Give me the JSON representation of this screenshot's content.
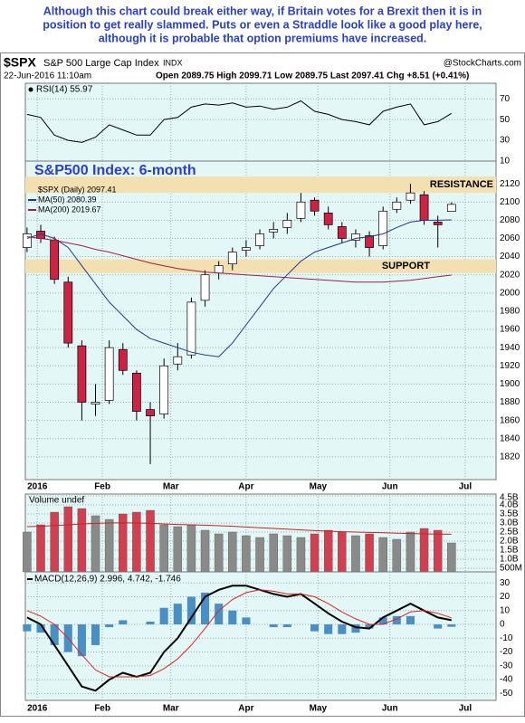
{
  "header": {
    "commentary": [
      "Although this chart could break either way, if Britain votes for a Brexit then it is in",
      "position to get really slammed. Puts or even a Straddle look like a good play here,",
      "although it is probable that option premiums have increased."
    ],
    "symbol": "$SPX",
    "name": "S&P 500 Large Cap Index",
    "exchange": "INDX",
    "date": "22-Jun-2016 11:10am",
    "quote": "Open 2089.75  High 2099.71  Low 2089.75  Last 2097.41  Chg +8.51 (+0.41%)",
    "source": "@StockCharts.com"
  },
  "chart_data": [
    {
      "type": "line",
      "xlim": [
        3.5,
        141
      ],
      "ylim": [
        10,
        85
      ],
      "yticks": [
        70,
        50,
        30,
        10
      ],
      "grid": true,
      "x": [
        4,
        8,
        12,
        16,
        20,
        24,
        28,
        32,
        36,
        40,
        44,
        48,
        52,
        56,
        60,
        64,
        68,
        72,
        76,
        80,
        84,
        88,
        92,
        96,
        100,
        104,
        108,
        112,
        116,
        120,
        124,
        128
      ],
      "series": [
        {
          "name": "RSI(14) 55.97",
          "color": "#000000",
          "values": [
            55,
            52,
            35,
            30,
            28,
            33,
            45,
            40,
            35,
            35,
            50,
            52,
            62,
            65,
            64,
            66,
            62,
            63,
            60,
            62,
            68,
            58,
            55,
            50,
            48,
            45,
            58,
            62,
            65,
            45,
            48,
            55.97
          ]
        }
      ]
    },
    {
      "type": "candlestick",
      "title": "S&P500 Index: 6-month",
      "name": "$SPX (Daily) 2097.41",
      "xlim": [
        3.5,
        141
      ],
      "ylim": [
        1795,
        2145
      ],
      "grid": true,
      "yticks": [
        1820,
        1840,
        1860,
        1880,
        1900,
        1920,
        1940,
        1960,
        1980,
        2000,
        2020,
        2040,
        2060,
        2080,
        2100,
        2120
      ],
      "xticks": [
        {
          "value": 7,
          "label": "2016"
        },
        {
          "value": 26,
          "label": "Feb"
        },
        {
          "value": 46,
          "label": "Mar"
        },
        {
          "value": 68,
          "label": "Apr"
        },
        {
          "value": 89,
          "label": "May"
        },
        {
          "value": 110,
          "label": "Jun"
        },
        {
          "value": 132,
          "label": "Jul"
        }
      ],
      "x": [
        4,
        8,
        12,
        16,
        20,
        24,
        28,
        32,
        36,
        40,
        44,
        48,
        52,
        56,
        60,
        64,
        68,
        72,
        76,
        80,
        84,
        88,
        92,
        96,
        100,
        104,
        108,
        112,
        116,
        120,
        124,
        128
      ],
      "open": [
        2050,
        2068,
        2058,
        2012,
        1942,
        1878,
        1882,
        1938,
        1912,
        1872,
        1867,
        1922,
        1932,
        1992,
        2022,
        2032,
        2047,
        2052,
        2067,
        2072,
        2082,
        2102,
        2088,
        2073,
        2058,
        2063,
        2052,
        2092,
        2102,
        2108,
        2078,
        2089.75
      ],
      "high": [
        2072,
        2075,
        2062,
        2018,
        1948,
        1900,
        1948,
        1945,
        1915,
        1880,
        1928,
        1945,
        1995,
        2025,
        2035,
        2050,
        2058,
        2070,
        2078,
        2088,
        2110,
        2105,
        2095,
        2078,
        2070,
        2068,
        2095,
        2105,
        2120,
        2112,
        2085,
        2099.71
      ],
      "low": [
        2045,
        2055,
        2010,
        1940,
        1860,
        1865,
        1878,
        1910,
        1860,
        1812,
        1862,
        1915,
        1928,
        1985,
        2015,
        2025,
        2040,
        2048,
        2060,
        2065,
        2078,
        2085,
        2070,
        2055,
        2050,
        2040,
        2048,
        2088,
        2098,
        2075,
        2050,
        2089.75
      ],
      "close": [
        2065,
        2060,
        2015,
        1945,
        1880,
        1880,
        1940,
        1915,
        1870,
        1865,
        1920,
        1930,
        1990,
        2020,
        2030,
        2045,
        2050,
        2065,
        2070,
        2080,
        2100,
        2090,
        2075,
        2060,
        2065,
        2050,
        2090,
        2100,
        2110,
        2080,
        2075,
        2097.41
      ],
      "up_color": "#ffffff",
      "down_color": "#cc2244",
      "series": [
        {
          "name": "MA(50) 2080.39",
          "color": "#1a3a8a",
          "values": [
            2060,
            2065,
            2060,
            2050,
            2030,
            2010,
            1990,
            1975,
            1960,
            1950,
            1945,
            1940,
            1935,
            1932,
            1930,
            1945,
            1965,
            1985,
            2005,
            2020,
            2035,
            2045,
            2050,
            2055,
            2060,
            2062,
            2065,
            2072,
            2078,
            2080,
            2080,
            2080.39
          ]
        },
        {
          "name": "MA(200) 2019.67",
          "color": "#a02040",
          "values": [
            2062,
            2060,
            2058,
            2055,
            2052,
            2048,
            2045,
            2041,
            2037,
            2033,
            2030,
            2027,
            2025,
            2023,
            2022,
            2021,
            2020,
            2019,
            2018,
            2017,
            2016,
            2015,
            2014,
            2013,
            2012,
            2012,
            2012,
            2013,
            2014,
            2016,
            2018,
            2019.67
          ]
        }
      ],
      "bands": [
        {
          "label": "RESISTANCE",
          "range": [
            2110,
            2128
          ],
          "color": "#f3dfb0"
        },
        {
          "label": "SUPPORT",
          "range": [
            2022,
            2037
          ],
          "color": "#f3dfb0"
        }
      ]
    },
    {
      "type": "bar",
      "name": "Volume undef",
      "xlim": [
        3.5,
        141
      ],
      "ylim": [
        300000000,
        4600000000
      ],
      "grid": true,
      "yticks": [
        {
          "value": 500000000,
          "label": "500M"
        },
        {
          "value": 1000000000,
          "label": "1.0B"
        },
        {
          "value": 1500000000,
          "label": "1.5B"
        },
        {
          "value": 2000000000,
          "label": "2.0B"
        },
        {
          "value": 2500000000,
          "label": "2.5B"
        },
        {
          "value": 3000000000,
          "label": "3.0B"
        },
        {
          "value": 3500000000,
          "label": "3.5B"
        },
        {
          "value": 4000000000,
          "label": "4.0B"
        },
        {
          "value": 4500000000,
          "label": "4.5B"
        }
      ],
      "x": [
        4,
        8,
        12,
        16,
        20,
        24,
        28,
        32,
        36,
        40,
        44,
        48,
        52,
        56,
        60,
        64,
        68,
        72,
        76,
        80,
        84,
        88,
        92,
        96,
        100,
        104,
        108,
        112,
        116,
        120,
        124,
        128
      ],
      "values": [
        2500000000,
        2900000000,
        3600000000,
        3900000000,
        3800000000,
        3400000000,
        3200000000,
        3500000000,
        3600000000,
        3700000000,
        2900000000,
        2800000000,
        2900000000,
        2600000000,
        2400000000,
        2500000000,
        2300000000,
        2200000000,
        2400000000,
        2300000000,
        2200000000,
        2400000000,
        2600000000,
        2500000000,
        2300000000,
        2400000000,
        2200000000,
        2100000000,
        2500000000,
        2700000000,
        2600000000,
        1900000000
      ],
      "up_color": "#8a8a8a",
      "down_color": "#d04050",
      "average": [
        2800000000,
        2820000000,
        2860000000,
        2900000000,
        2950000000,
        2980000000,
        3000000000,
        3010000000,
        3000000000,
        2980000000,
        2950000000,
        2920000000,
        2900000000,
        2880000000,
        2850000000,
        2820000000,
        2780000000,
        2740000000,
        2700000000,
        2660000000,
        2620000000,
        2580000000,
        2550000000,
        2520000000,
        2500000000,
        2480000000,
        2460000000,
        2440000000,
        2420000000,
        2400000000,
        2390000000,
        2380000000
      ],
      "average_color": "#cc2222"
    },
    {
      "type": "macd",
      "name": "MACD(12,26,9) 2.996, 4.742, -1.746",
      "xlim": [
        3.5,
        141
      ],
      "ylim": [
        -55,
        38
      ],
      "grid": true,
      "yticks": [
        30,
        20,
        10,
        0,
        -10,
        -20,
        -30,
        -40,
        -50
      ],
      "xticks": [
        {
          "value": 7,
          "label": "2016"
        },
        {
          "value": 26,
          "label": "Feb"
        },
        {
          "value": 46,
          "label": "Mar"
        },
        {
          "value": 68,
          "label": "Apr"
        },
        {
          "value": 89,
          "label": "May"
        },
        {
          "value": 110,
          "label": "Jun"
        },
        {
          "value": 132,
          "label": "Jul"
        }
      ],
      "x": [
        4,
        8,
        12,
        16,
        20,
        24,
        28,
        32,
        36,
        40,
        44,
        48,
        52,
        56,
        60,
        64,
        68,
        72,
        76,
        80,
        84,
        88,
        92,
        96,
        100,
        104,
        108,
        112,
        116,
        120,
        124,
        128
      ],
      "series": [
        {
          "color": "#000000",
          "values": [
            5,
            0,
            -15,
            -30,
            -45,
            -48,
            -40,
            -35,
            -38,
            -35,
            -20,
            -10,
            5,
            20,
            25,
            28,
            28,
            25,
            22,
            20,
            22,
            15,
            8,
            2,
            -2,
            -3,
            5,
            10,
            15,
            10,
            5,
            2.996
          ]
        },
        {
          "color": "#dd2222",
          "values": [
            10,
            6,
            0,
            -10,
            -22,
            -33,
            -38,
            -38,
            -38,
            -37,
            -32,
            -25,
            -15,
            -3,
            10,
            18,
            23,
            25,
            24,
            22,
            22,
            20,
            15,
            9,
            4,
            0,
            0,
            4,
            9,
            10,
            8,
            4.742
          ]
        }
      ],
      "histogram": [
        -5,
        -6,
        -15,
        -20,
        -23,
        -15,
        -2,
        3,
        0,
        2,
        12,
        15,
        20,
        23,
        15,
        10,
        5,
        0,
        -2,
        -2,
        0,
        -5,
        -7,
        -7,
        -6,
        -3,
        5,
        6,
        6,
        0,
        -3,
        -1.746
      ],
      "histogram_color": "#4a8fc4"
    }
  ]
}
